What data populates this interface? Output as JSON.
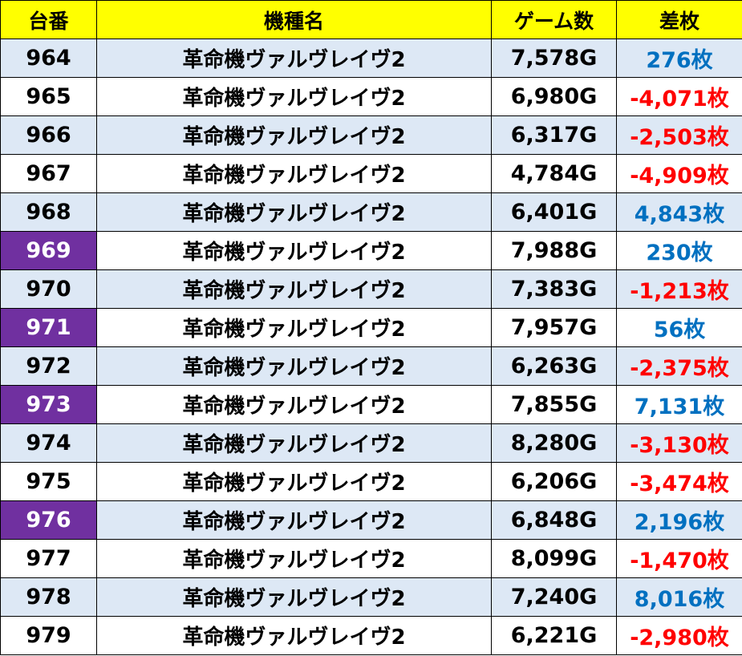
{
  "headers": {
    "machine_no": "台番",
    "model": "機種名",
    "games": "ゲーム数",
    "diff": "差枚"
  },
  "colors": {
    "header_bg": "#ffff00",
    "highlight": "#7030a0",
    "positive": "#0070c0",
    "negative": "#ff0000",
    "alt_row": "#dde8f5"
  },
  "rows": [
    {
      "no": "964",
      "model": "革命機ヴァルヴレイヴ2",
      "games": "7,578G",
      "diff": "276枚",
      "highlight": false
    },
    {
      "no": "965",
      "model": "革命機ヴァルヴレイヴ2",
      "games": "6,980G",
      "diff": "-4,071枚",
      "highlight": false
    },
    {
      "no": "966",
      "model": "革命機ヴァルヴレイヴ2",
      "games": "6,317G",
      "diff": "-2,503枚",
      "highlight": false
    },
    {
      "no": "967",
      "model": "革命機ヴァルヴレイヴ2",
      "games": "4,784G",
      "diff": "-4,909枚",
      "highlight": false
    },
    {
      "no": "968",
      "model": "革命機ヴァルヴレイヴ2",
      "games": "6,401G",
      "diff": "4,843枚",
      "highlight": false
    },
    {
      "no": "969",
      "model": "革命機ヴァルヴレイヴ2",
      "games": "7,988G",
      "diff": "230枚",
      "highlight": true
    },
    {
      "no": "970",
      "model": "革命機ヴァルヴレイヴ2",
      "games": "7,383G",
      "diff": "-1,213枚",
      "highlight": false
    },
    {
      "no": "971",
      "model": "革命機ヴァルヴレイヴ2",
      "games": "7,957G",
      "diff": "56枚",
      "highlight": true
    },
    {
      "no": "972",
      "model": "革命機ヴァルヴレイヴ2",
      "games": "6,263G",
      "diff": "-2,375枚",
      "highlight": false
    },
    {
      "no": "973",
      "model": "革命機ヴァルヴレイヴ2",
      "games": "7,855G",
      "diff": "7,131枚",
      "highlight": true
    },
    {
      "no": "974",
      "model": "革命機ヴァルヴレイヴ2",
      "games": "8,280G",
      "diff": "-3,130枚",
      "highlight": false
    },
    {
      "no": "975",
      "model": "革命機ヴァルヴレイヴ2",
      "games": "6,206G",
      "diff": "-3,474枚",
      "highlight": false
    },
    {
      "no": "976",
      "model": "革命機ヴァルヴレイヴ2",
      "games": "6,848G",
      "diff": "2,196枚",
      "highlight": true
    },
    {
      "no": "977",
      "model": "革命機ヴァルヴレイヴ2",
      "games": "8,099G",
      "diff": "-1,470枚",
      "highlight": false
    },
    {
      "no": "978",
      "model": "革命機ヴァルヴレイヴ2",
      "games": "7,240G",
      "diff": "8,016枚",
      "highlight": false
    },
    {
      "no": "979",
      "model": "革命機ヴァルヴレイヴ2",
      "games": "6,221G",
      "diff": "-2,980枚",
      "highlight": false
    }
  ]
}
